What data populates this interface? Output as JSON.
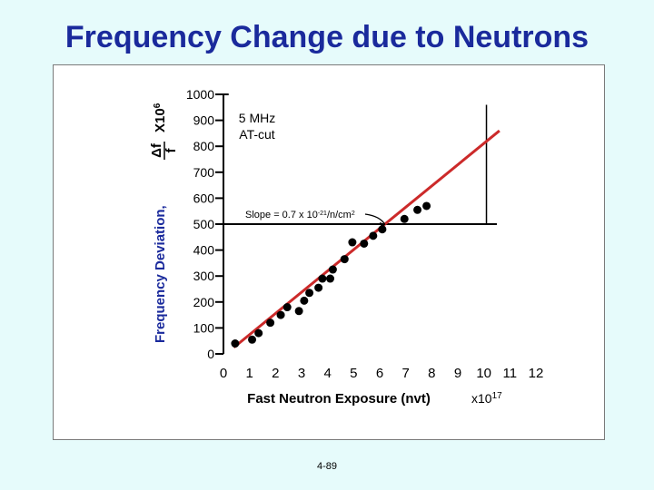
{
  "title": "Frequency Change due to Neutrons",
  "page_number": "4-89",
  "chart_data": {
    "type": "scatter",
    "annotation_crystal": [
      "5 MHz",
      "AT-cut"
    ],
    "slope_label": "Slope = 0.7 x 10",
    "slope_exponent": "-21",
    "slope_unit": "/n/cm",
    "slope_unit_exponent": "2",
    "ylabel_prefix": "Frequency Deviation,",
    "ylabel_fraction_num": "Δf",
    "ylabel_fraction_den": "f",
    "ylabel_multiplier": "X10",
    "ylabel_multiplier_exponent": "6",
    "xlabel": "Fast Neutron Exposure (nvt)",
    "x_multiplier": "x10",
    "x_multiplier_exponent": "17",
    "xlim": [
      0,
      12
    ],
    "ylim": [
      0,
      1000
    ],
    "x_ticks": [
      "0",
      "1",
      "2",
      "3",
      "4",
      "5",
      "6",
      "7",
      "8",
      "9",
      "10",
      "11",
      "12"
    ],
    "y_ticks": [
      "0",
      "100",
      "200",
      "300",
      "400",
      "500",
      "600",
      "700",
      "800",
      "900",
      "1000"
    ],
    "grid": false,
    "points": [
      {
        "x": 0.45,
        "y": 40
      },
      {
        "x": 1.1,
        "y": 55
      },
      {
        "x": 1.35,
        "y": 80
      },
      {
        "x": 1.8,
        "y": 120
      },
      {
        "x": 2.2,
        "y": 150
      },
      {
        "x": 2.45,
        "y": 180
      },
      {
        "x": 2.9,
        "y": 165
      },
      {
        "x": 3.1,
        "y": 205
      },
      {
        "x": 3.3,
        "y": 235
      },
      {
        "x": 3.65,
        "y": 255
      },
      {
        "x": 3.8,
        "y": 290
      },
      {
        "x": 4.1,
        "y": 290
      },
      {
        "x": 4.2,
        "y": 325
      },
      {
        "x": 4.65,
        "y": 365
      },
      {
        "x": 4.95,
        "y": 430
      },
      {
        "x": 5.4,
        "y": 425
      },
      {
        "x": 5.75,
        "y": 455
      },
      {
        "x": 6.1,
        "y": 480
      },
      {
        "x": 6.95,
        "y": 520
      },
      {
        "x": 7.45,
        "y": 555
      },
      {
        "x": 7.8,
        "y": 570
      }
    ],
    "fit_line": {
      "x": [
        0.4,
        10.6
      ],
      "y": [
        25,
        860
      ]
    },
    "reference_line_y": 500,
    "point_color": "#000000",
    "fit_line_color": "#cc2a2a"
  }
}
